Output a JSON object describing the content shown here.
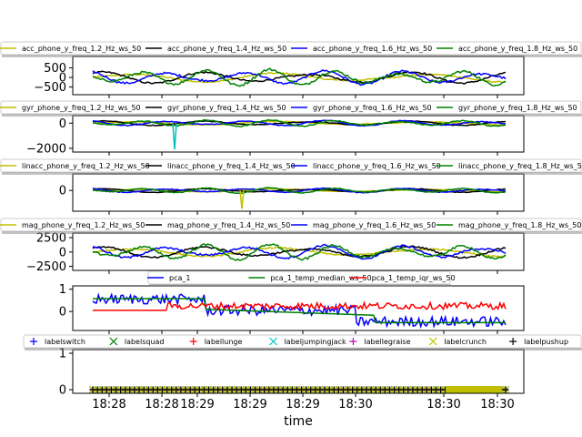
{
  "chart_data": {
    "type": "line",
    "xlabel": "time",
    "x_ticks": [
      "18:28",
      "18:28",
      "18:29",
      "18:29",
      "18:29",
      "18:30",
      "18:30",
      "18:30"
    ],
    "panels": [
      {
        "id": "acc",
        "yticks": [
          "500",
          "0",
          "−500"
        ],
        "ylim": [
          -900,
          1100
        ],
        "series": [
          {
            "name": "acc_phone_y_freq_1.2_Hz_ws_50",
            "color": "#bfbf00"
          },
          {
            "name": "acc_phone_y_freq_1.4_Hz_ws_50",
            "color": "#000000"
          },
          {
            "name": "acc_phone_y_freq_1.6_Hz_ws_50",
            "color": "#0000ff"
          },
          {
            "name": "acc_phone_y_freq_1.8_Hz_ws_50",
            "color": "#008000"
          }
        ]
      },
      {
        "id": "gyr",
        "yticks": [
          "0",
          "−2000"
        ],
        "ylim": [
          -2300,
          600
        ],
        "series": [
          {
            "name": "gyr_phone_y_freq_1.2_Hz_ws_50",
            "color": "#bfbf00"
          },
          {
            "name": "gyr_phone_y_freq_1.4_Hz_ws_50",
            "color": "#000000"
          },
          {
            "name": "gyr_phone_y_freq_1.6_Hz_ws_50",
            "color": "#0000ff"
          },
          {
            "name": "gyr_phone_y_freq_1.8_Hz_ws_50",
            "color": "#008000"
          }
        ]
      },
      {
        "id": "linacc",
        "yticks": [
          "0"
        ],
        "ylim": [
          -25,
          20
        ],
        "series": [
          {
            "name": "linacc_phone_y_freq_1.2_Hz_ws_50",
            "color": "#bfbf00"
          },
          {
            "name": "linacc_phone_y_freq_1.4_Hz_ws_50",
            "color": "#000000"
          },
          {
            "name": "linacc_phone_y_freq_1.6_Hz_ws_50",
            "color": "#0000ff"
          },
          {
            "name": "linacc_phone_y_freq_1.8_Hz_ws_50",
            "color": "#008000"
          }
        ]
      },
      {
        "id": "mag",
        "yticks": [
          "2500",
          "0",
          "−2500"
        ],
        "ylim": [
          -3200,
          3300
        ],
        "series": [
          {
            "name": "mag_phone_y_freq_1.2_Hz_ws_50",
            "color": "#bfbf00"
          },
          {
            "name": "mag_phone_y_freq_1.4_Hz_ws_50",
            "color": "#000000"
          },
          {
            "name": "mag_phone_y_freq_1.6_Hz_ws_50",
            "color": "#0000ff"
          },
          {
            "name": "mag_phone_y_freq_1.8_Hz_ws_50",
            "color": "#008000"
          }
        ]
      },
      {
        "id": "pca",
        "yticks": [
          "1",
          "0"
        ],
        "ylim": [
          -0.85,
          1.15
        ],
        "series": [
          {
            "name": "pca_1",
            "color": "#0000ff"
          },
          {
            "name": "pca_1_temp_median_ws_50",
            "color": "#008000"
          },
          {
            "name": "pca_1_temp_iqr_ws_50",
            "color": "#ff0000"
          }
        ]
      },
      {
        "id": "labels",
        "yticks": [
          "1",
          "0"
        ],
        "ylim": [
          -0.1,
          1.1
        ],
        "series": [
          {
            "name": "labelswitch",
            "color": "#0000ff",
            "marker": "+"
          },
          {
            "name": "labelsquad",
            "color": "#008000",
            "marker": "x"
          },
          {
            "name": "labellunge",
            "color": "#ff0000",
            "marker": "+"
          },
          {
            "name": "labeljumpingjack",
            "color": "#00bfbf",
            "marker": "x"
          },
          {
            "name": "labellegraise",
            "color": "#bf00bf",
            "marker": "+"
          },
          {
            "name": "labelcrunch",
            "color": "#bfbf00",
            "marker": "x"
          },
          {
            "name": "labelpushup",
            "color": "#000000",
            "marker": "+"
          }
        ]
      }
    ]
  }
}
